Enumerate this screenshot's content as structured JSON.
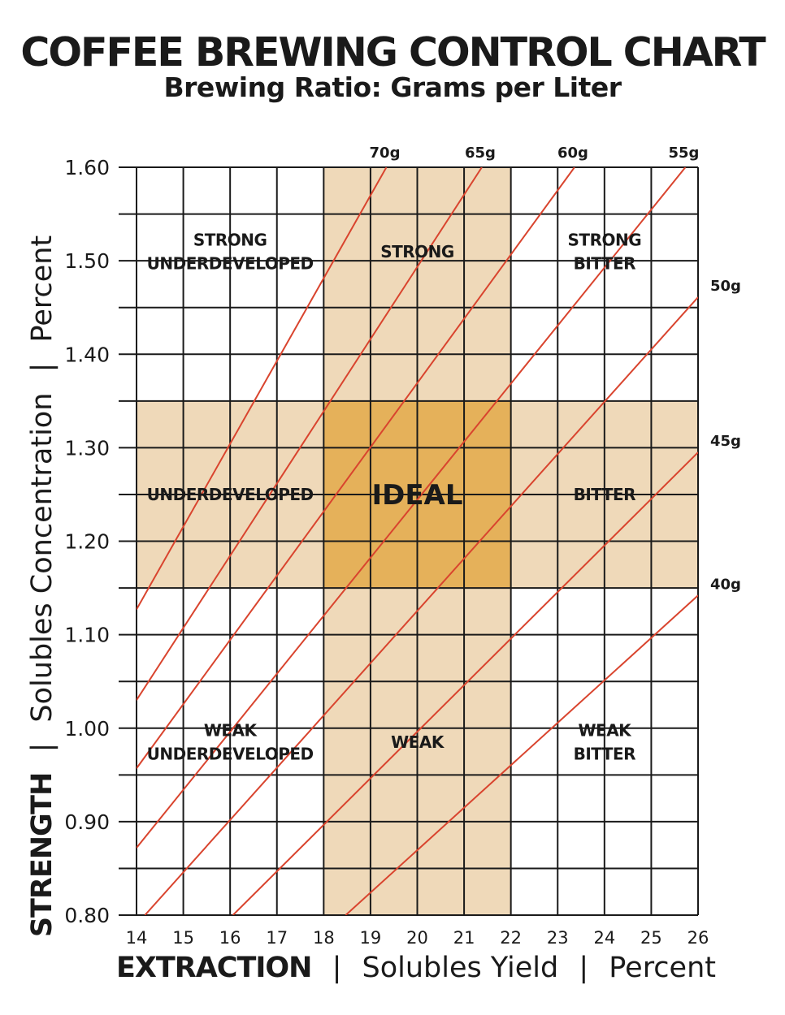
{
  "title": "COFFEE BREWING CONTROL CHART",
  "subtitle": "Brewing Ratio: Grams per Liter",
  "chart_data": {
    "type": "line",
    "x": {
      "min": 14,
      "max": 26,
      "ticks": [
        14,
        15,
        16,
        17,
        18,
        19,
        20,
        21,
        22,
        23,
        24,
        25,
        26
      ],
      "minor_step": 1
    },
    "y": {
      "min": 0.8,
      "max": 1.6,
      "ticks": [
        "0.80",
        "0.90",
        "1.00",
        "1.10",
        "1.20",
        "1.30",
        "1.40",
        "1.50",
        "1.60"
      ],
      "minor_step": 0.05
    },
    "xlabel": {
      "bold": "EXTRACTION",
      "sep": "|",
      "part1": "Solubles Yield",
      "part2": "Percent"
    },
    "ylabel": {
      "bold": "STRENGTH",
      "sep": "|",
      "part1": "Solubles Concentration",
      "part2": "Percent"
    },
    "zones": {
      "ideal_extraction": [
        18,
        22
      ],
      "ideal_strength": [
        1.15,
        1.35
      ]
    },
    "colors": {
      "band": "#efd9b9",
      "ideal": "#e5b15a",
      "line": "#d9442e",
      "grid": "#1a1a1a"
    },
    "region_labels": [
      {
        "name": "strong-underdeveloped",
        "lines": [
          "STRONG",
          "UNDERDEVELOPED"
        ],
        "x": 16,
        "y": 1.51
      },
      {
        "name": "strong",
        "lines": [
          "STRONG"
        ],
        "x": 20,
        "y": 1.51
      },
      {
        "name": "strong-bitter",
        "lines": [
          "STRONG",
          "BITTER"
        ],
        "x": 24,
        "y": 1.51
      },
      {
        "name": "underdeveloped",
        "lines": [
          "UNDERDEVELOPED"
        ],
        "x": 16,
        "y": 1.25
      },
      {
        "name": "ideal",
        "lines": [
          "IDEAL"
        ],
        "x": 20,
        "y": 1.25
      },
      {
        "name": "bitter",
        "lines": [
          "BITTER"
        ],
        "x": 24,
        "y": 1.25
      },
      {
        "name": "weak-underdeveloped",
        "lines": [
          "WEAK",
          "UNDERDEVELOPED"
        ],
        "x": 16,
        "y": 0.985
      },
      {
        "name": "weak",
        "lines": [
          "WEAK"
        ],
        "x": 20,
        "y": 0.985
      },
      {
        "name": "weak-bitter",
        "lines": [
          "WEAK",
          "BITTER"
        ],
        "x": 24,
        "y": 0.985
      }
    ],
    "series": [
      {
        "name": "70g",
        "start": [
          14,
          1.127
        ],
        "end": [
          19.34,
          1.6
        ]
      },
      {
        "name": "65g",
        "start": [
          14,
          1.03
        ],
        "end": [
          21.38,
          1.6
        ]
      },
      {
        "name": "60g",
        "start": [
          14,
          0.957
        ],
        "end": [
          23.36,
          1.6
        ]
      },
      {
        "name": "55g",
        "start": [
          14,
          0.872
        ],
        "end": [
          25.73,
          1.6
        ]
      },
      {
        "name": "50g",
        "start": [
          14.18,
          0.8
        ],
        "end": [
          26,
          1.461
        ]
      },
      {
        "name": "45g",
        "start": [
          16.06,
          0.8
        ],
        "end": [
          26,
          1.295
        ]
      },
      {
        "name": "40g",
        "start": [
          18.47,
          0.8
        ],
        "end": [
          26,
          1.142
        ]
      }
    ]
  }
}
